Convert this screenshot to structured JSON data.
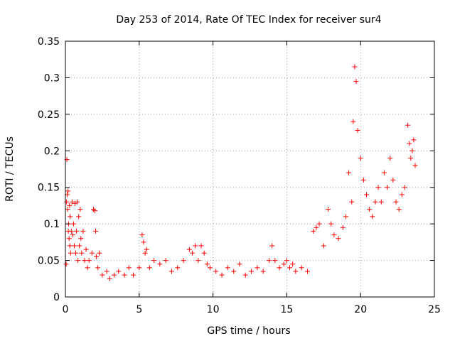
{
  "chart_data": {
    "type": "scatter",
    "title": "Day 253 of 2014, Rate Of TEC Index for receiver sur4",
    "xlabel": "GPS time / hours",
    "ylabel": "ROTI / TECUs",
    "xlim": [
      0,
      25
    ],
    "ylim": [
      0,
      0.35
    ],
    "xticks": [
      "0",
      "5",
      "10",
      "15",
      "20",
      "25"
    ],
    "yticks": [
      "0",
      "0.05",
      "0.1",
      "0.15",
      "0.2",
      "0.25",
      "0.3",
      "0.35"
    ],
    "grid": true,
    "marker": "+",
    "color": "#ff0000",
    "series": [
      {
        "x": [
          0.05,
          0.08,
          0.1,
          0.12,
          0.15,
          0.18,
          0.2,
          0.22,
          0.25,
          0.28,
          0.3,
          0.32,
          0.35,
          0.4,
          0.45,
          0.5,
          0.55,
          0.6,
          0.65,
          0.7,
          0.75,
          0.8,
          0.85,
          0.9,
          0.95,
          1.0,
          1.05,
          1.1,
          1.2,
          1.3,
          1.4,
          1.5,
          1.6,
          1.8,
          1.9,
          2.0,
          2.05,
          2.1,
          2.2,
          2.3,
          2.5,
          2.8,
          3.0,
          3.3,
          3.6,
          4.0,
          4.3,
          4.6,
          5.0,
          5.2,
          5.3,
          5.4,
          5.5,
          5.7,
          6.0,
          6.4,
          6.8,
          7.2,
          7.6,
          8.0,
          8.4,
          8.6,
          8.8,
          9.0,
          9.2,
          9.4,
          9.6,
          9.8,
          10.2,
          10.6,
          11.0,
          11.4,
          11.8,
          12.2,
          12.6,
          13.0,
          13.4,
          13.8,
          14.0,
          14.2,
          14.5,
          14.8,
          15.0,
          15.2,
          15.4,
          15.6,
          16.0,
          16.4,
          16.8,
          17.0,
          17.2,
          17.5,
          17.8,
          18.0,
          18.2,
          18.5,
          18.8,
          19.0,
          19.2,
          19.4,
          19.5,
          19.6,
          19.7,
          19.8,
          20.0,
          20.2,
          20.4,
          20.6,
          20.8,
          21.0,
          21.2,
          21.4,
          21.6,
          21.8,
          22.0,
          22.2,
          22.4,
          22.6,
          22.8,
          23.0,
          23.2,
          23.3,
          23.4,
          23.5,
          23.6,
          23.7
        ],
        "y": [
          0.045,
          0.13,
          0.188,
          0.14,
          0.12,
          0.145,
          0.09,
          0.1,
          0.08,
          0.125,
          0.07,
          0.11,
          0.06,
          0.09,
          0.13,
          0.085,
          0.1,
          0.07,
          0.128,
          0.06,
          0.09,
          0.13,
          0.05,
          0.11,
          0.07,
          0.12,
          0.08,
          0.06,
          0.09,
          0.05,
          0.065,
          0.04,
          0.05,
          0.06,
          0.12,
          0.118,
          0.09,
          0.055,
          0.04,
          0.06,
          0.03,
          0.035,
          0.025,
          0.03,
          0.035,
          0.03,
          0.04,
          0.03,
          0.04,
          0.085,
          0.075,
          0.06,
          0.065,
          0.04,
          0.05,
          0.045,
          0.05,
          0.035,
          0.04,
          0.05,
          0.065,
          0.06,
          0.07,
          0.05,
          0.07,
          0.06,
          0.045,
          0.04,
          0.035,
          0.03,
          0.04,
          0.035,
          0.045,
          0.03,
          0.035,
          0.04,
          0.035,
          0.05,
          0.07,
          0.05,
          0.04,
          0.045,
          0.05,
          0.04,
          0.045,
          0.035,
          0.04,
          0.035,
          0.09,
          0.095,
          0.1,
          0.07,
          0.12,
          0.1,
          0.085,
          0.08,
          0.095,
          0.11,
          0.17,
          0.13,
          0.24,
          0.315,
          0.295,
          0.228,
          0.19,
          0.16,
          0.14,
          0.12,
          0.11,
          0.13,
          0.15,
          0.13,
          0.17,
          0.15,
          0.19,
          0.16,
          0.13,
          0.12,
          0.14,
          0.15,
          0.235,
          0.21,
          0.19,
          0.2,
          0.215,
          0.18
        ]
      }
    ]
  }
}
